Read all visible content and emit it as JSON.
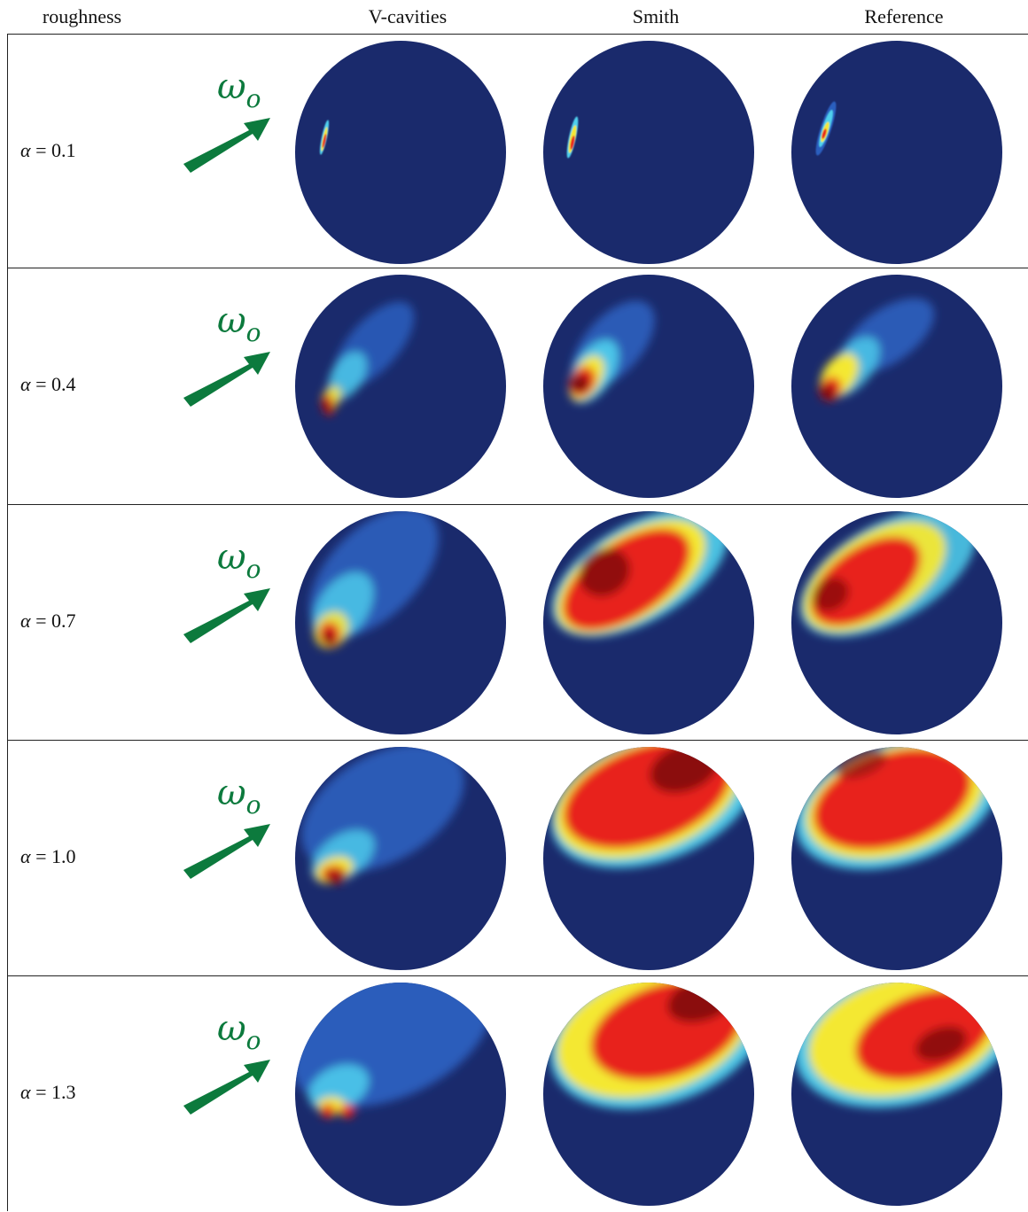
{
  "header": {
    "col_roughness": "roughness",
    "col_vcavities": "V-cavities",
    "col_smith": "Smith",
    "col_reference": "Reference"
  },
  "omega_label": {
    "main": "ω",
    "sub": "o"
  },
  "rows": [
    {
      "alpha_prefix": "α",
      "alpha_rest": " = 0.1"
    },
    {
      "alpha_prefix": "α",
      "alpha_rest": " = 0.4"
    },
    {
      "alpha_prefix": "α",
      "alpha_rest": " = 0.7"
    },
    {
      "alpha_prefix": "α",
      "alpha_rest": " = 1.0"
    },
    {
      "alpha_prefix": "α",
      "alpha_rest": " = 1.3"
    }
  ],
  "colors": {
    "background_disk": "#1a2a6c",
    "arrow": "#0c7a3d",
    "heat_low": "#2c5fbf",
    "heat_cyan": "#4fd1ee",
    "heat_yellow": "#f4e832",
    "heat_red": "#e8221e",
    "heat_dark": "#7a0a0a"
  }
}
